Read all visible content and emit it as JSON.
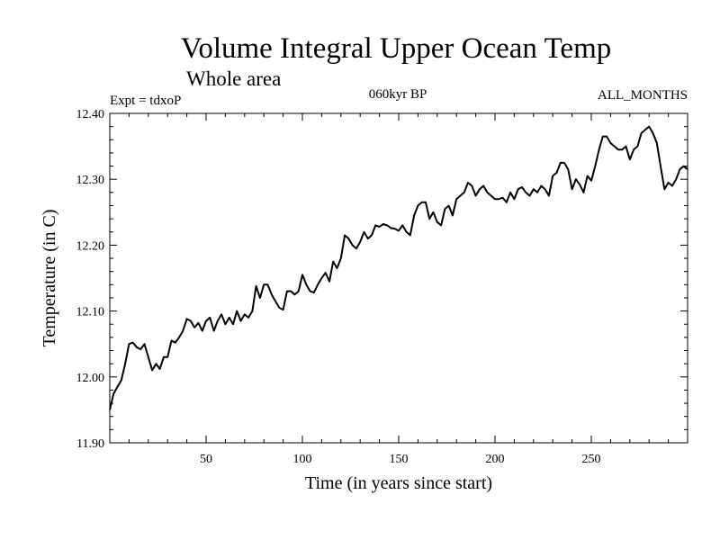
{
  "chart_data": {
    "type": "line",
    "title": "Volume Integral Upper Ocean Temp",
    "subtitle": "Whole area",
    "annotations": {
      "left": "Expt = tdxoP",
      "center": "060kyr BP",
      "right": "ALL_MONTHS"
    },
    "xlabel": "Time (in years since start)",
    "ylabel": "Temperature (in C)",
    "xlim": [
      0,
      300
    ],
    "ylim": [
      11.9,
      12.4
    ],
    "x_ticks": [
      50,
      100,
      150,
      200,
      250
    ],
    "x_tick_labels": [
      "50",
      "100",
      "150",
      "200",
      "250"
    ],
    "y_ticks": [
      11.9,
      12.0,
      12.1,
      12.2,
      12.3,
      12.4
    ],
    "y_tick_labels": [
      "11.90",
      "12.00",
      "12.10",
      "12.20",
      "12.30",
      "12.40"
    ],
    "grid": false,
    "series": [
      {
        "x": [
          0,
          2,
          4,
          6,
          8,
          10,
          12,
          14,
          16,
          18,
          20,
          22,
          24,
          26,
          28,
          30,
          32,
          34,
          36,
          38,
          40,
          42,
          44,
          46,
          48,
          50,
          52,
          54,
          56,
          58,
          60,
          62,
          64,
          66,
          68,
          70,
          72,
          74,
          76,
          78,
          80,
          82,
          84,
          86,
          88,
          90,
          92,
          94,
          96,
          98,
          100,
          102,
          104,
          106,
          108,
          110,
          112,
          114,
          116,
          118,
          120,
          122,
          124,
          126,
          128,
          130,
          132,
          134,
          136,
          138,
          140,
          142,
          144,
          146,
          148,
          150,
          152,
          154,
          156,
          158,
          160,
          162,
          164,
          166,
          168,
          170,
          172,
          174,
          176,
          178,
          180,
          182,
          184,
          186,
          188,
          190,
          192,
          194,
          196,
          198,
          200,
          202,
          204,
          206,
          208,
          210,
          212,
          214,
          216,
          218,
          220,
          222,
          224,
          226,
          228,
          230,
          232,
          234,
          236,
          238,
          240,
          242,
          244,
          246,
          248,
          250,
          252,
          254,
          256,
          258,
          260,
          262,
          264,
          266,
          268,
          270,
          272,
          274,
          276,
          278,
          280,
          282,
          284,
          286,
          288,
          290,
          292,
          294,
          296,
          298,
          300
        ],
        "y": [
          11.95,
          11.975,
          11.985,
          11.995,
          12.02,
          12.05,
          12.052,
          12.045,
          12.042,
          12.05,
          12.03,
          12.01,
          12.02,
          12.012,
          12.03,
          12.03,
          12.055,
          12.052,
          12.06,
          12.07,
          12.088,
          12.085,
          12.075,
          12.082,
          12.07,
          12.085,
          12.09,
          12.07,
          12.085,
          12.095,
          12.08,
          12.09,
          12.08,
          12.1,
          12.085,
          12.095,
          12.09,
          12.1,
          12.138,
          12.12,
          12.14,
          12.14,
          12.125,
          12.115,
          12.105,
          12.102,
          12.13,
          12.13,
          12.125,
          12.13,
          12.155,
          12.14,
          12.13,
          12.128,
          12.14,
          12.15,
          12.158,
          12.145,
          12.175,
          12.165,
          12.18,
          12.215,
          12.21,
          12.2,
          12.195,
          12.205,
          12.22,
          12.21,
          12.215,
          12.23,
          12.228,
          12.232,
          12.23,
          12.226,
          12.225,
          12.222,
          12.23,
          12.22,
          12.215,
          12.245,
          12.26,
          12.265,
          12.265,
          12.24,
          12.25,
          12.235,
          12.23,
          12.255,
          12.26,
          12.245,
          12.27,
          12.275,
          12.28,
          12.295,
          12.29,
          12.275,
          12.285,
          12.29,
          12.28,
          12.275,
          12.27,
          12.27,
          12.272,
          12.265,
          12.28,
          12.27,
          12.285,
          12.288,
          12.28,
          12.275,
          12.285,
          12.28,
          12.29,
          12.285,
          12.275,
          12.305,
          12.31,
          12.325,
          12.325,
          12.315,
          12.285,
          12.3,
          12.292,
          12.28,
          12.305,
          12.298,
          12.32,
          12.345,
          12.365,
          12.365,
          12.355,
          12.35,
          12.345,
          12.345,
          12.35,
          12.33,
          12.345,
          12.35,
          12.37,
          12.375,
          12.38,
          12.37,
          12.355,
          12.32,
          12.285,
          12.295,
          12.29,
          12.3,
          12.315,
          12.32,
          12.315
        ]
      }
    ]
  }
}
